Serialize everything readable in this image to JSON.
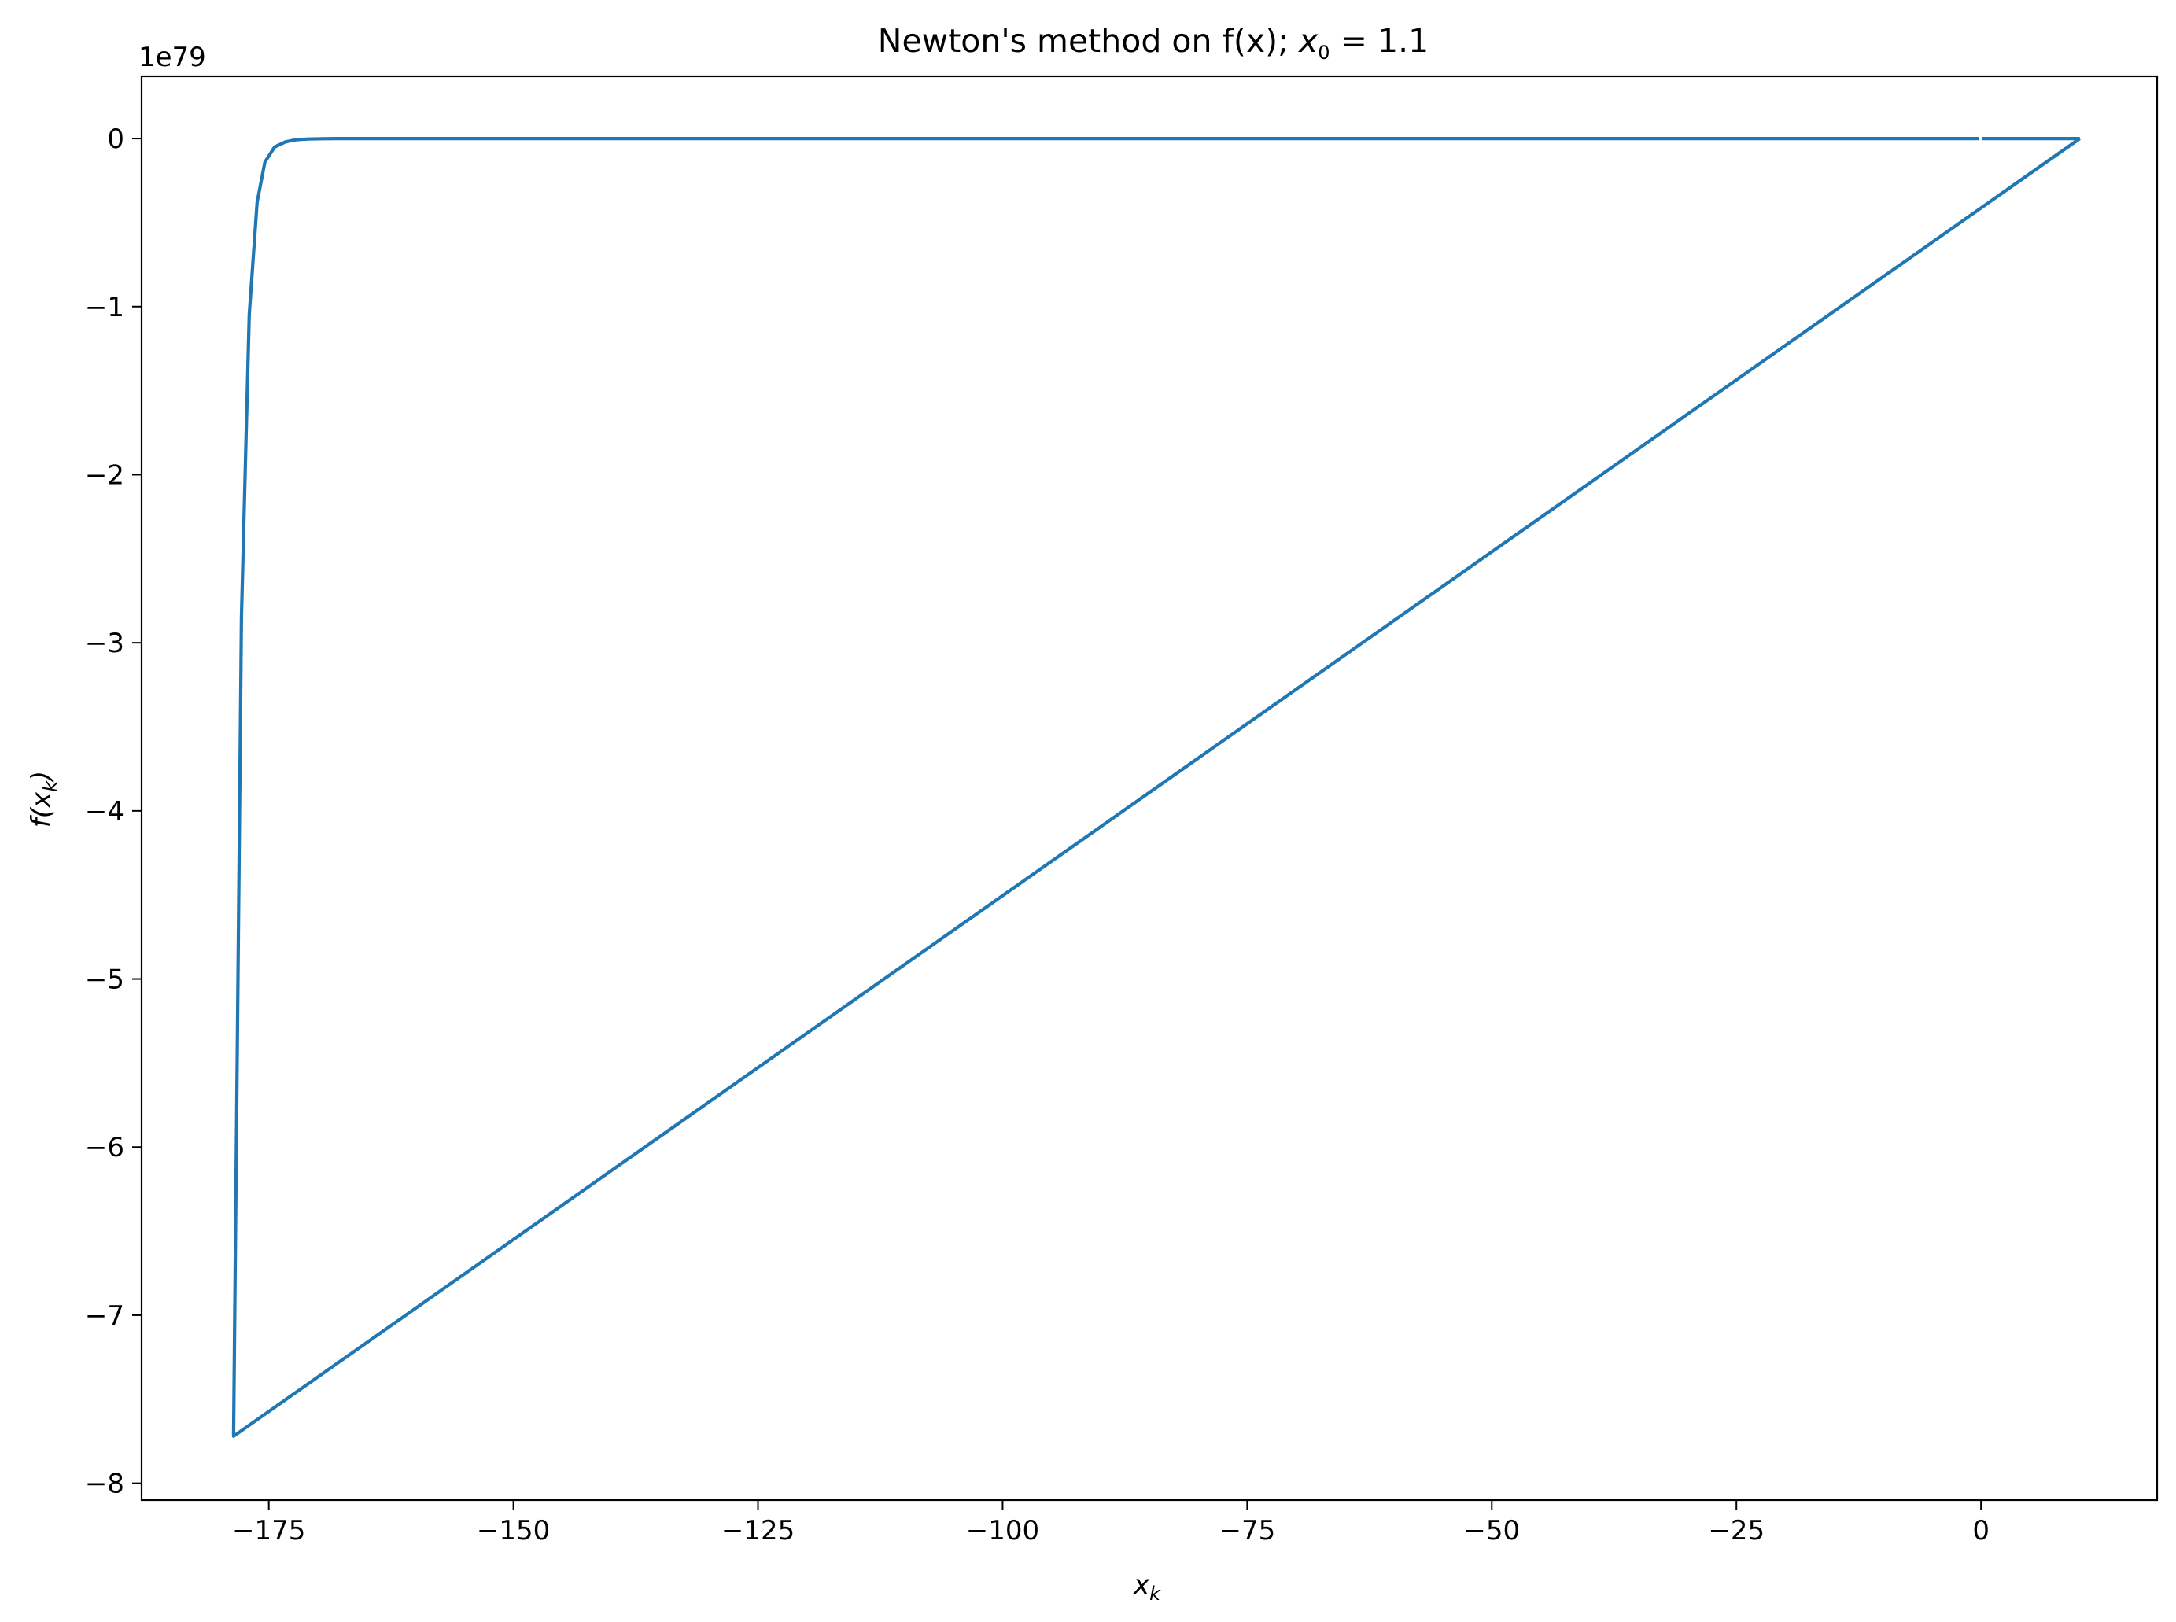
{
  "chart_data": {
    "type": "line",
    "title_prefix": "Newton's method on f(x); ",
    "title_math_var": "x",
    "title_math_sub": "0",
    "title_math_value": " = 1.1",
    "xlabel_var": "x",
    "xlabel_sub": "k",
    "ylabel_prefix": "f(",
    "ylabel_var": "x",
    "ylabel_sub": "k",
    "ylabel_suffix": ")",
    "y_offset_label": "1e79",
    "xlim": [
      -188,
      18
    ],
    "ylim": [
      -8.1,
      0.37
    ],
    "y_unit_multiplier": "1e79",
    "grid": false,
    "legend": "none",
    "line_color": "#1f77b4",
    "x_ticks": [
      {
        "value": -175,
        "label": "−175"
      },
      {
        "value": -150,
        "label": "−150"
      },
      {
        "value": -125,
        "label": "−125"
      },
      {
        "value": -100,
        "label": "−100"
      },
      {
        "value": -75,
        "label": "−75"
      },
      {
        "value": -50,
        "label": "−50"
      },
      {
        "value": -25,
        "label": "−25"
      },
      {
        "value": 0,
        "label": "0"
      }
    ],
    "y_ticks": [
      {
        "value": 0,
        "label": "0"
      },
      {
        "value": -1,
        "label": "−1"
      },
      {
        "value": -2,
        "label": "−2"
      },
      {
        "value": -3,
        "label": "−3"
      },
      {
        "value": -4,
        "label": "−4"
      },
      {
        "value": -5,
        "label": "−5"
      },
      {
        "value": -6,
        "label": "−6"
      },
      {
        "value": -7,
        "label": "−7"
      },
      {
        "value": -8,
        "label": "−8"
      }
    ],
    "series": [
      {
        "segments": [
          {
            "x": [
              0.1,
              10.1
            ],
            "y": [
              0,
              0
            ]
          },
          {
            "x": [
              10.1,
              -178.6,
              -177.8,
              -177.0,
              -176.2,
              -175.4,
              -174.4,
              -173.3,
              -172.2,
              -171.0,
              -169.5,
              -168.0,
              -160.0,
              -140.0,
              -100.0,
              -50.0,
              -10.0,
              -1.0,
              -0.2
            ],
            "y": [
              0,
              -7.72,
              -2.85,
              -1.05,
              -0.38,
              -0.14,
              -0.05,
              -0.02,
              -0.007,
              -0.003,
              -0.001,
              0,
              0,
              0,
              0,
              0,
              0,
              0,
              0
            ]
          }
        ]
      }
    ]
  }
}
